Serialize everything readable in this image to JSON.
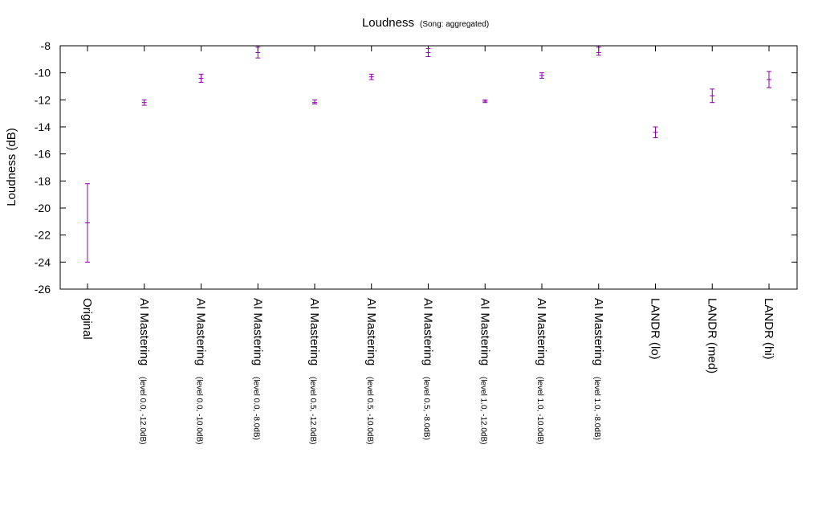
{
  "chart_data": {
    "type": "scatter",
    "title": "Loudness",
    "subtitle": "(Song: aggregated)",
    "xlabel": "",
    "ylabel": "Loudness (dB)",
    "ylim": [
      -26,
      -8
    ],
    "yticks": [
      -8,
      -10,
      -12,
      -14,
      -16,
      -18,
      -20,
      -22,
      -24,
      -26
    ],
    "grid": false,
    "categories": [
      {
        "name": "Original",
        "sub": ""
      },
      {
        "name": "AI Mastering",
        "sub": "(level 0.0, -12.0dB)"
      },
      {
        "name": "AI Mastering",
        "sub": "(level 0.0, -10.0dB)"
      },
      {
        "name": "AI Mastering",
        "sub": "(level 0.0, -8.0dB)"
      },
      {
        "name": "AI Mastering",
        "sub": "(level 0.5, -12.0dB)"
      },
      {
        "name": "AI Mastering",
        "sub": "(level 0.5, -10.0dB)"
      },
      {
        "name": "AI Mastering",
        "sub": "(level 0.5, -8.0dB)"
      },
      {
        "name": "AI Mastering",
        "sub": "(level 1.0, -12.0dB)"
      },
      {
        "name": "AI Mastering",
        "sub": "(level 1.0, -10.0dB)"
      },
      {
        "name": "AI Mastering",
        "sub": "(level 1.0, -8.0dB)"
      },
      {
        "name": "LANDR (lo)",
        "sub": ""
      },
      {
        "name": "LANDR (med)",
        "sub": ""
      },
      {
        "name": "LANDR (hi)",
        "sub": ""
      }
    ],
    "series": [
      {
        "color": "#8b00a8",
        "values": [
          {
            "mean": -21.1,
            "low": -24.0,
            "high": -18.2
          },
          {
            "mean": -12.2,
            "low": -12.4,
            "high": -12.0
          },
          {
            "mean": -10.4,
            "low": -10.7,
            "high": -10.1
          },
          {
            "mean": -8.5,
            "low": -8.9,
            "high": -8.1
          },
          {
            "mean": -12.2,
            "low": -12.3,
            "high": -12.0
          },
          {
            "mean": -10.3,
            "low": -10.5,
            "high": -10.1
          },
          {
            "mean": -8.5,
            "low": -8.8,
            "high": -8.2
          },
          {
            "mean": -12.1,
            "low": -12.2,
            "high": -12.0
          },
          {
            "mean": -10.2,
            "low": -10.4,
            "high": -10.0
          },
          {
            "mean": -8.5,
            "low": -8.7,
            "high": -8.1
          },
          {
            "mean": -14.4,
            "low": -14.8,
            "high": -14.0
          },
          {
            "mean": -11.7,
            "low": -12.2,
            "high": -11.2
          },
          {
            "mean": -10.5,
            "low": -11.1,
            "high": -9.9
          }
        ]
      }
    ]
  }
}
